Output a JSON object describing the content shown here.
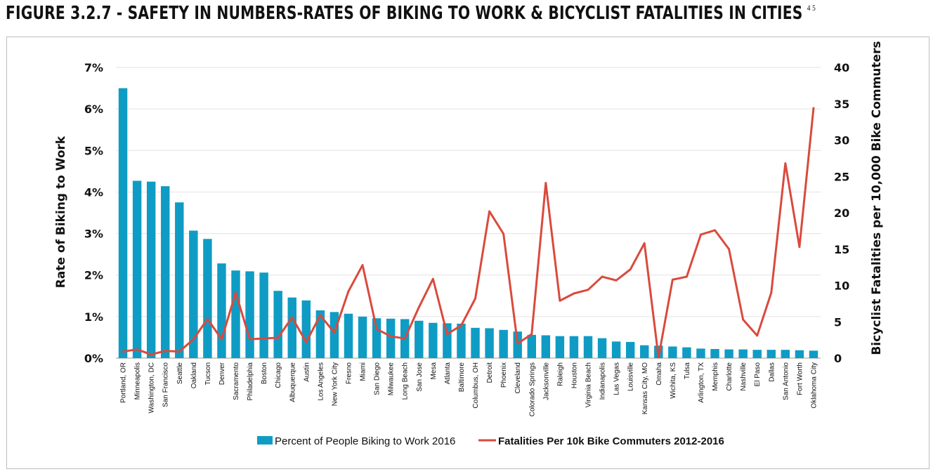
{
  "figure": {
    "title": "FIGURE 3.2.7 - SAFETY IN NUMBERS-RATES OF BIKING TO WORK & BICYCLIST FATALITIES IN CITIES",
    "footnote_ref": "4 5"
  },
  "chart_data": {
    "type": "bar",
    "categories": [
      "Portland, OR",
      "Minneapolis",
      "Washington, DC",
      "San Francisco",
      "Seattle",
      "Oakland",
      "Tucson",
      "Denver",
      "Sacramento",
      "Philadelphia",
      "Boston",
      "Chicago",
      "Albuquerque",
      "Austin",
      "Los Angeles",
      "New York City",
      "Fresno",
      "Miami",
      "San Diego",
      "Milwaukee",
      "Long Beach",
      "San Jose",
      "Mesa",
      "Atlanta",
      "Baltimore",
      "Columbus, OH",
      "Detroit",
      "Phoenix",
      "Cleveland",
      "Colorado Springs",
      "Jacksonville",
      "Raleigh",
      "Houston",
      "Virginia Beach",
      "Indianapolis",
      "Las Vegas",
      "Louisville",
      "Kansas City, MO",
      "Omaha",
      "Wichita, KS",
      "Tulsa",
      "Arlington, TX",
      "Memphis",
      "Charlotte",
      "Nashville",
      "El Paso",
      "Dallas",
      "San Antonio",
      "Fort Worth",
      "Oklahoma City"
    ],
    "series": [
      {
        "name": "Percent of People Biking to Work 2016",
        "type": "bar",
        "axis": "left",
        "color": "#0f9cc4",
        "values": [
          6.5,
          4.27,
          4.25,
          4.14,
          3.75,
          3.07,
          2.87,
          2.28,
          2.11,
          2.09,
          2.06,
          1.62,
          1.46,
          1.39,
          1.15,
          1.11,
          1.07,
          1.0,
          0.96,
          0.95,
          0.94,
          0.9,
          0.85,
          0.84,
          0.83,
          0.73,
          0.72,
          0.68,
          0.64,
          0.56,
          0.55,
          0.53,
          0.53,
          0.53,
          0.48,
          0.4,
          0.39,
          0.31,
          0.3,
          0.28,
          0.26,
          0.23,
          0.22,
          0.21,
          0.21,
          0.2,
          0.2,
          0.2,
          0.19,
          0.18
        ]
      },
      {
        "name": "Fatalities Per 10k Bike Commuters 2012-2016",
        "type": "line",
        "axis": "right",
        "color": "#d94a3d",
        "values": [
          0.9,
          1.2,
          0.5,
          1.0,
          0.9,
          2.6,
          5.4,
          2.6,
          9.0,
          2.6,
          2.7,
          2.8,
          5.6,
          2.2,
          5.9,
          3.5,
          9.2,
          12.8,
          4.0,
          3.0,
          2.7,
          7.0,
          10.9,
          3.3,
          4.5,
          8.2,
          20.2,
          17.1,
          2.0,
          3.3,
          24.1,
          7.9,
          8.9,
          9.4,
          11.2,
          10.7,
          12.2,
          15.8,
          0.1,
          10.8,
          11.2,
          17.0,
          17.6,
          15.0,
          5.3,
          3.1,
          9.0,
          26.8,
          15.3,
          34.4
        ]
      }
    ],
    "y_left": {
      "label": "Rate of Biking to Work",
      "min": 0,
      "max": 7,
      "ticks": [
        "0%",
        "1%",
        "2%",
        "3%",
        "4%",
        "5%",
        "6%",
        "7%"
      ]
    },
    "y_right": {
      "label": "Bicyclist Fatalities per 10,000 Bike Commuters",
      "min": 0,
      "max": 40,
      "ticks": [
        "0",
        "5",
        "10",
        "15",
        "20",
        "25",
        "30",
        "35",
        "40"
      ]
    },
    "grid": true,
    "legend_position": "bottom"
  }
}
